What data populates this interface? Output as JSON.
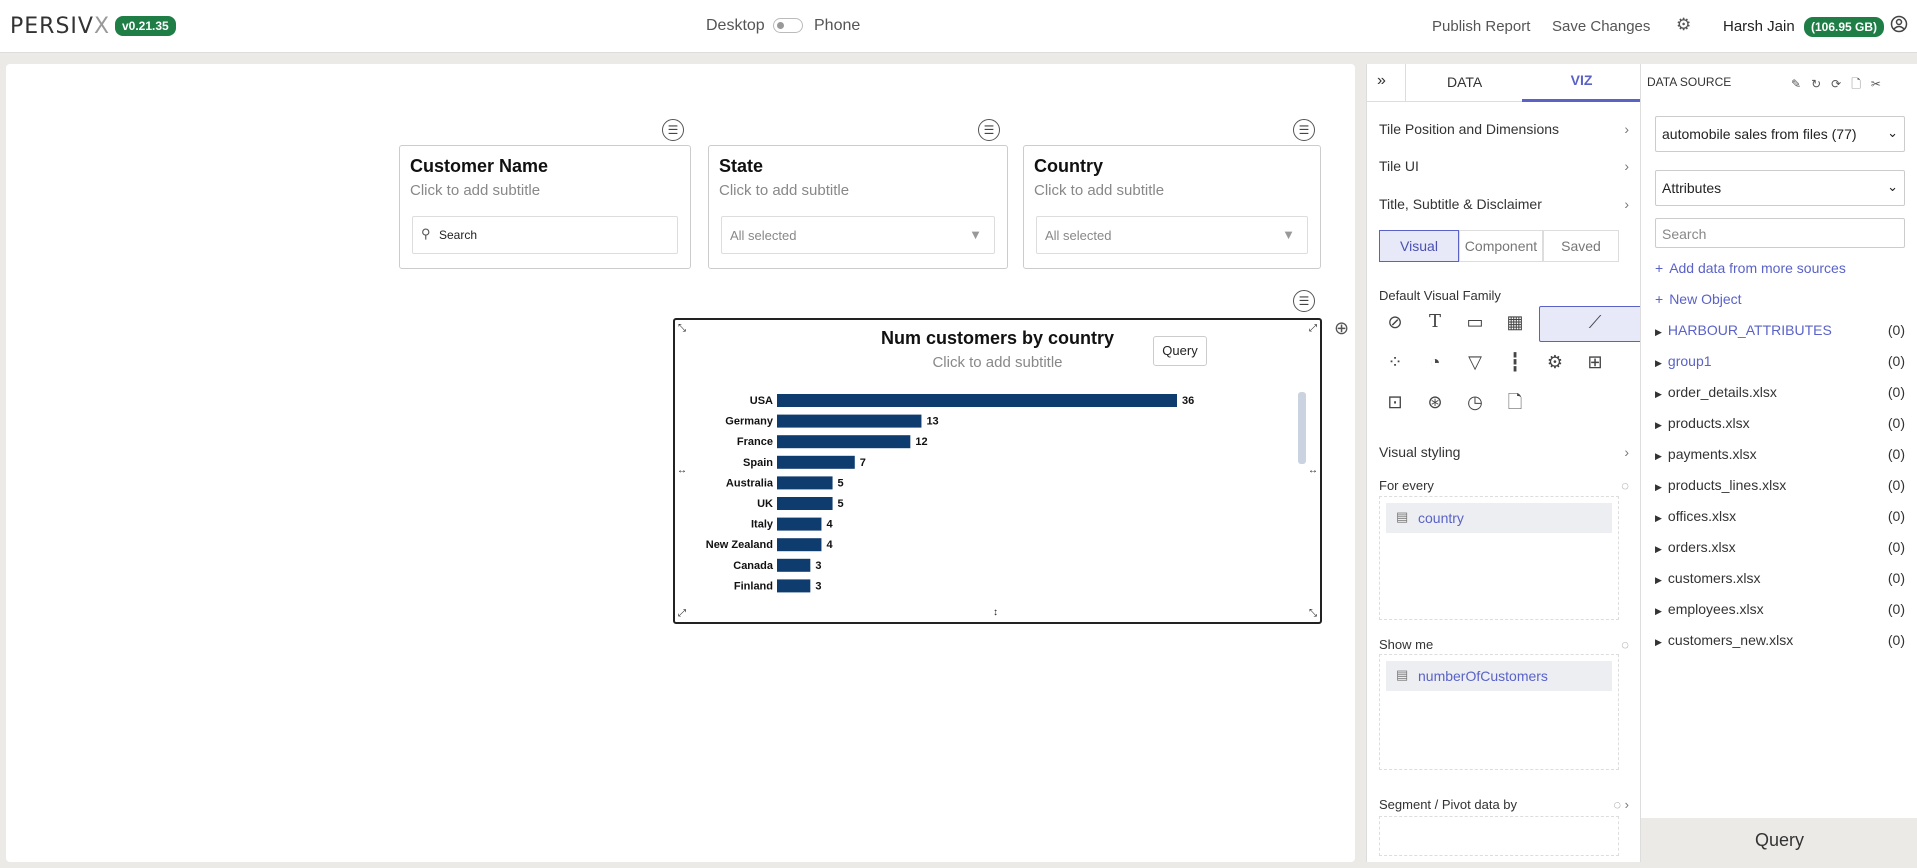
{
  "app": {
    "logo_main": "PERSIV",
    "logo_x": "X",
    "version": "v0.21.35"
  },
  "topbar": {
    "desktop": "Desktop",
    "phone": "Phone",
    "publish": "Publish Report",
    "save": "Save Changes",
    "user": "Harsh Jain",
    "storage": "(106.95 GB)"
  },
  "filters": [
    {
      "title": "Customer Name",
      "subtitle": "Click to add subtitle",
      "control": "Search"
    },
    {
      "title": "State",
      "subtitle": "Click to add subtitle",
      "control": "All selected"
    },
    {
      "title": "Country",
      "subtitle": "Click to add subtitle",
      "control": "All selected"
    }
  ],
  "chart_tile": {
    "query_label": "Query",
    "bar_color": "#0e3c6e"
  },
  "chart_data": {
    "type": "bar",
    "orientation": "horizontal",
    "title": "Num customers by country",
    "subtitle": "Click to add subtitle",
    "categories": [
      "USA",
      "Germany",
      "France",
      "Spain",
      "Australia",
      "UK",
      "Italy",
      "New Zealand",
      "Canada",
      "Finland"
    ],
    "values": [
      36,
      13,
      12,
      7,
      5,
      5,
      4,
      4,
      3,
      3
    ],
    "xlim": [
      0,
      36
    ],
    "grid": false,
    "legend": "none"
  },
  "viz_panel": {
    "tab_data": "DATA",
    "tab_viz": "VIZ",
    "rows": [
      "Tile Position and Dimensions",
      "Tile UI",
      "Title, Subtitle & Disclaimer"
    ],
    "segments": [
      "Visual",
      "Component",
      "Saved"
    ],
    "default_family": "Default Visual Family",
    "visual_icons": [
      "none-icon",
      "text-icon",
      "card-icon",
      "table-icon",
      "bar-chart-icon",
      "line-chart-icon",
      "scatter-icon",
      "pie-chart-icon",
      "funnel-icon",
      "candlestick-icon",
      "settings-icon",
      "grid-layout-icon",
      "map-icon",
      "network-icon",
      "gauge-icon",
      "file-icon"
    ],
    "visual_styling": "Visual styling",
    "for_every": "For every",
    "for_every_field": "country",
    "show_me": "Show me",
    "show_me_field": "numberOfCustomers",
    "segment_by": "Segment / Pivot data by"
  },
  "data_source": {
    "title": "DATA SOURCE",
    "source": "automobile sales from files (77)",
    "category": "Attributes",
    "search_placeholder": "Search",
    "add_more": "Add data from more sources",
    "new_object": "New Object",
    "items": [
      {
        "name": "HARBOUR_ATTRIBUTES",
        "count": "(0)"
      },
      {
        "name": "group1",
        "count": "(0)"
      },
      {
        "name": "order_details.xlsx",
        "count": "(0)"
      },
      {
        "name": "products.xlsx",
        "count": "(0)"
      },
      {
        "name": "payments.xlsx",
        "count": "(0)"
      },
      {
        "name": "products_lines.xlsx",
        "count": "(0)"
      },
      {
        "name": "offices.xlsx",
        "count": "(0)"
      },
      {
        "name": "orders.xlsx",
        "count": "(0)"
      },
      {
        "name": "customers.xlsx",
        "count": "(0)"
      },
      {
        "name": "employees.xlsx",
        "count": "(0)"
      },
      {
        "name": "customers_new.xlsx",
        "count": "(0)"
      }
    ],
    "query_button": "Query"
  }
}
